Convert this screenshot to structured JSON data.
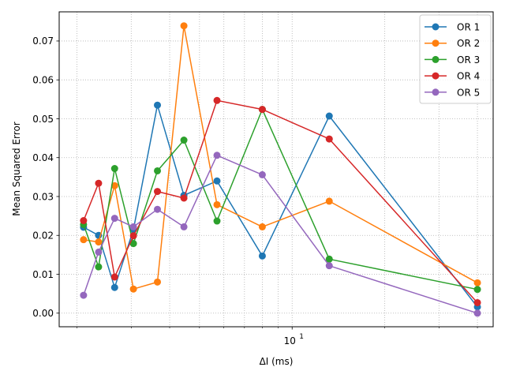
{
  "chart_data": {
    "type": "line",
    "title": "",
    "xlabel": "ΔI (ms)",
    "ylabel": "Mean Squared Error",
    "xscale": "log",
    "xlim": [
      1.75,
      45
    ],
    "ylim": [
      -0.0035,
      0.0775
    ],
    "grid": true,
    "legend_position": "upper right",
    "x": [
      2.1,
      2.35,
      2.65,
      3.05,
      3.65,
      4.45,
      5.7,
      8.0,
      13.2,
      40
    ],
    "x_major_ticks": [
      {
        "value": 10,
        "label": "10",
        "exp": "1"
      }
    ],
    "x_minor_ticks": [
      2,
      3,
      4,
      5,
      6,
      7,
      8,
      9,
      20,
      30,
      40
    ],
    "y_ticks": [
      {
        "value": 0.0,
        "label": "0.00"
      },
      {
        "value": 0.01,
        "label": "0.01"
      },
      {
        "value": 0.02,
        "label": "0.02"
      },
      {
        "value": 0.03,
        "label": "0.03"
      },
      {
        "value": 0.04,
        "label": "0.04"
      },
      {
        "value": 0.05,
        "label": "0.05"
      },
      {
        "value": 0.06,
        "label": "0.06"
      },
      {
        "value": 0.07,
        "label": "0.07"
      }
    ],
    "series": [
      {
        "name": "OR 1",
        "color": "#1f77b4",
        "values": [
          0.0221,
          0.02,
          0.0066,
          0.0215,
          0.0535,
          0.0303,
          0.034,
          0.0147,
          0.0507,
          0.0016
        ]
      },
      {
        "name": "OR 2",
        "color": "#ff7f0e",
        "values": [
          0.0189,
          0.0183,
          0.0328,
          0.0062,
          0.008,
          0.0739,
          0.0279,
          0.0222,
          0.0288,
          0.0078
        ]
      },
      {
        "name": "OR 3",
        "color": "#2ca02c",
        "values": [
          0.0228,
          0.0119,
          0.0372,
          0.0179,
          0.0366,
          0.0445,
          0.0237,
          0.0524,
          0.0139,
          0.0061
        ]
      },
      {
        "name": "OR 4",
        "color": "#d62728",
        "values": [
          0.0238,
          0.0334,
          0.0093,
          0.0199,
          0.0313,
          0.0296,
          0.0547,
          0.0524,
          0.0448,
          0.0027
        ]
      },
      {
        "name": "OR 5",
        "color": "#9467bd",
        "values": [
          0.0046,
          0.0157,
          0.0244,
          0.0222,
          0.0267,
          0.0222,
          0.0406,
          0.0356,
          0.0122,
          0.0
        ]
      }
    ]
  }
}
